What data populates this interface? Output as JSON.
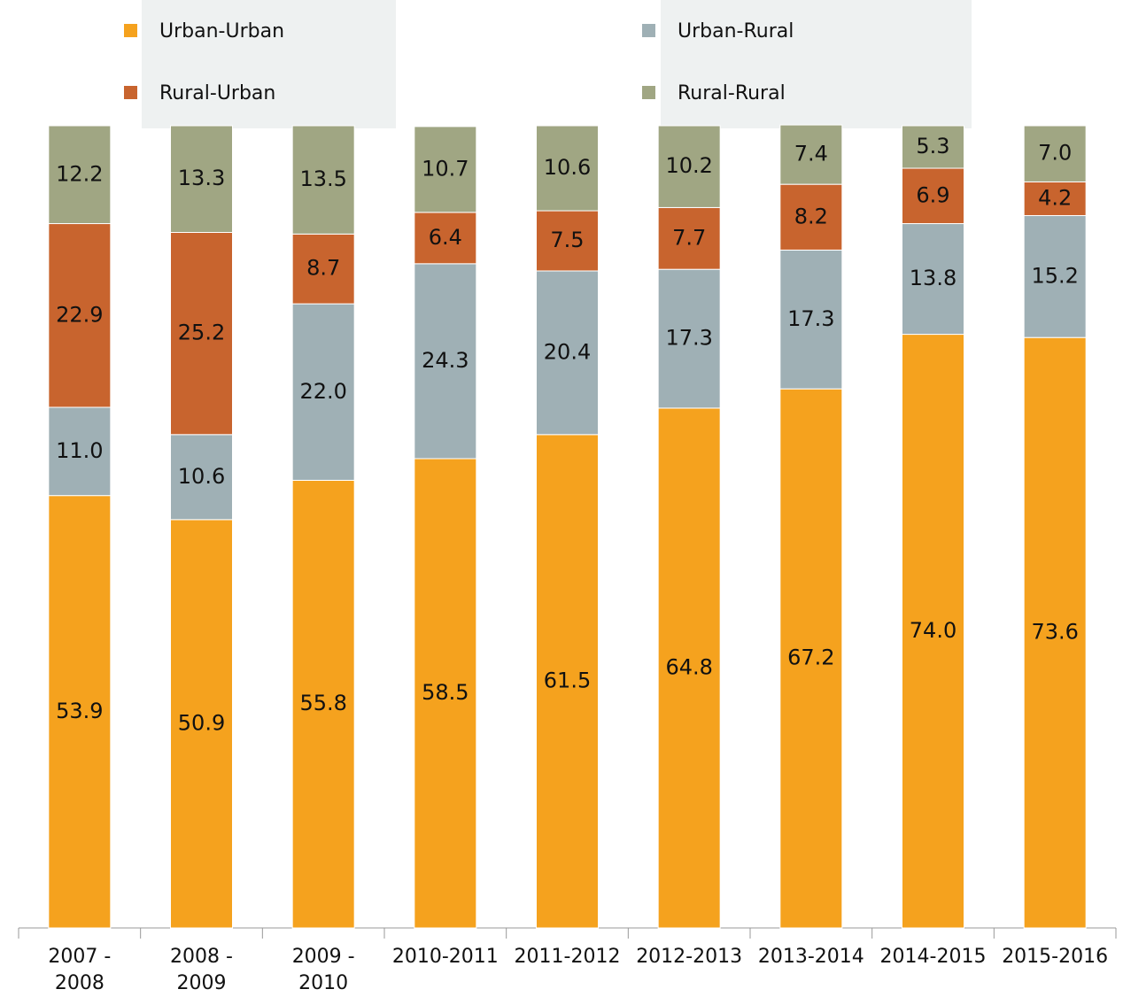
{
  "chart_data": {
    "type": "stacked_bar",
    "categories": [
      "2007 - 2008",
      "2008 - 2009",
      "2009 - 2010",
      "2010-2011",
      "2011-2012",
      "2012-2013",
      "2013-2014",
      "2014-2015",
      "2015-2016"
    ],
    "series": [
      {
        "name": "Urban-Urban",
        "color": "#f5a21e",
        "values": [
          53.9,
          50.9,
          55.8,
          58.5,
          61.5,
          64.8,
          67.2,
          74.0,
          73.6
        ],
        "value_labels": [
          "53.9",
          "50.9",
          "55.8",
          "58.5",
          "61.5",
          "64.8",
          "67.2",
          "74.0",
          "73.6"
        ]
      },
      {
        "name": "Urban-Rural",
        "color": "#9fb0b5",
        "values": [
          11.0,
          10.6,
          22.0,
          24.3,
          20.4,
          17.3,
          17.3,
          13.8,
          15.2
        ],
        "value_labels": [
          "11.0",
          "10.6",
          "22.0",
          "24.3",
          "20.4",
          "17.3",
          "17.3",
          "13.8",
          "15.2"
        ]
      },
      {
        "name": "Rural-Urban",
        "color": "#c8642e",
        "values": [
          22.9,
          25.2,
          8.7,
          6.4,
          7.5,
          7.7,
          8.2,
          6.9,
          4.2
        ],
        "value_labels": [
          "22.9",
          "25.2",
          "8.7",
          "6.4",
          "7.5",
          "7.7",
          "8.2",
          "6.9",
          "4.2"
        ]
      },
      {
        "name": "Rural-Rural",
        "color": "#a0a683",
        "values": [
          12.2,
          13.3,
          13.5,
          10.7,
          10.6,
          10.2,
          7.4,
          5.3,
          7.0
        ],
        "value_labels": [
          "12.2",
          "13.3",
          "13.5",
          "10.7",
          "10.6",
          "10.2",
          "7.4",
          "5.3",
          "7.0"
        ]
      }
    ],
    "ylim": [
      0,
      100
    ],
    "legend": "top"
  }
}
